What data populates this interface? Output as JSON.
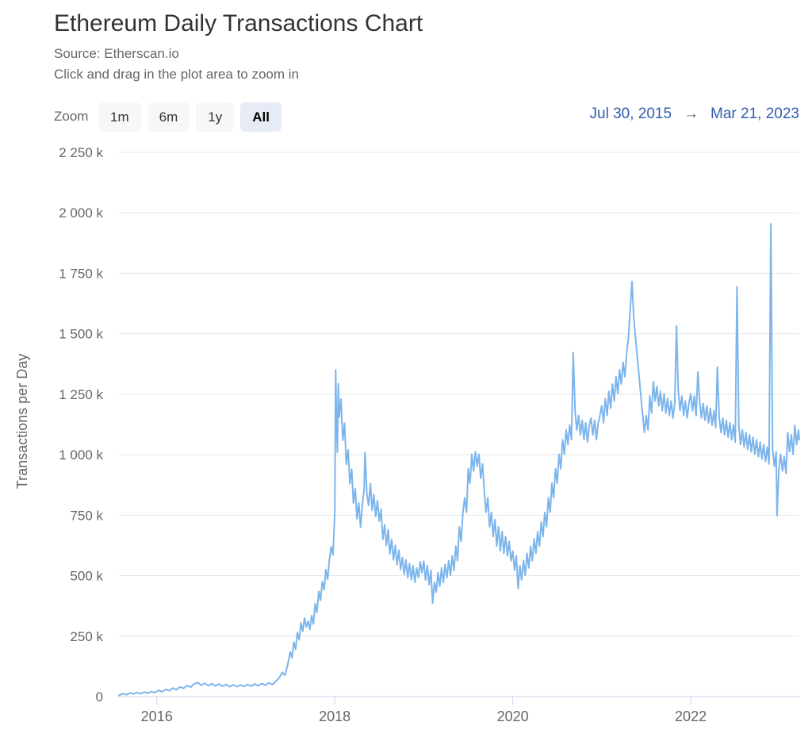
{
  "header": {
    "title": "Ethereum Daily Transactions Chart",
    "source_line": "Source: Etherscan.io",
    "hint_line": "Click and drag in the plot area to zoom in"
  },
  "range_selector": {
    "zoom_label": "Zoom",
    "buttons": [
      {
        "label": "1m",
        "selected": false
      },
      {
        "label": "6m",
        "selected": false
      },
      {
        "label": "1y",
        "selected": false
      },
      {
        "label": "All",
        "selected": true
      }
    ],
    "from_date": "Jul 30, 2015",
    "arrow": "→",
    "to_date": "Mar 21, 2023"
  },
  "colors": {
    "series_line": "#7cb5ec",
    "grid_line": "#e6e6e6",
    "axis_line": "#ccd6eb",
    "axis_text": "#666666",
    "title_text": "#333333",
    "subtitle_text": "#666666",
    "link_blue": "#335cad",
    "button_bg": "#f7f7f7",
    "button_selected_bg": "#e6ebf5"
  },
  "chart_data": {
    "type": "line",
    "title": "Ethereum Daily Transactions Chart",
    "subtitle": "Source: Etherscan.io",
    "xlabel": "",
    "ylabel": "Transactions per Day",
    "y_unit": "thousand transactions (k)",
    "ylim_k": [
      0,
      2250
    ],
    "x_range_years": [
      2015.575,
      2023.22
    ],
    "grid": true,
    "legend": "none",
    "yticks": [
      {
        "value": 0,
        "label": "0"
      },
      {
        "value": 250,
        "label": "250 k"
      },
      {
        "value": 500,
        "label": "500 k"
      },
      {
        "value": 750,
        "label": "750 k"
      },
      {
        "value": 1000,
        "label": "1 000 k"
      },
      {
        "value": 1250,
        "label": "1 250 k"
      },
      {
        "value": 1500,
        "label": "1 500 k"
      },
      {
        "value": 1750,
        "label": "1 750 k"
      },
      {
        "value": 2000,
        "label": "2 000 k"
      },
      {
        "value": 2250,
        "label": "2 250 k"
      }
    ],
    "xticks": [
      {
        "value": 2016,
        "label": "2016"
      },
      {
        "value": 2018,
        "label": "2018"
      },
      {
        "value": 2020,
        "label": "2020"
      },
      {
        "value": 2022,
        "label": "2022"
      }
    ],
    "points_tv_k": [
      [
        2015.575,
        5
      ],
      [
        2015.62,
        12
      ],
      [
        2015.66,
        8
      ],
      [
        2015.7,
        15
      ],
      [
        2015.74,
        11
      ],
      [
        2015.78,
        17
      ],
      [
        2015.82,
        12
      ],
      [
        2015.86,
        19
      ],
      [
        2015.9,
        14
      ],
      [
        2015.94,
        21
      ],
      [
        2015.98,
        16
      ],
      [
        2016.02,
        26
      ],
      [
        2016.06,
        20
      ],
      [
        2016.1,
        30
      ],
      [
        2016.14,
        24
      ],
      [
        2016.18,
        35
      ],
      [
        2016.22,
        29
      ],
      [
        2016.26,
        40
      ],
      [
        2016.3,
        34
      ],
      [
        2016.34,
        46
      ],
      [
        2016.38,
        39
      ],
      [
        2016.42,
        52
      ],
      [
        2016.46,
        58
      ],
      [
        2016.5,
        47
      ],
      [
        2016.54,
        55
      ],
      [
        2016.58,
        45
      ],
      [
        2016.62,
        53
      ],
      [
        2016.66,
        44
      ],
      [
        2016.7,
        52
      ],
      [
        2016.74,
        43
      ],
      [
        2016.78,
        50
      ],
      [
        2016.82,
        41
      ],
      [
        2016.86,
        49
      ],
      [
        2016.9,
        41
      ],
      [
        2016.94,
        48
      ],
      [
        2016.98,
        42
      ],
      [
        2017.02,
        50
      ],
      [
        2017.06,
        43
      ],
      [
        2017.1,
        52
      ],
      [
        2017.14,
        45
      ],
      [
        2017.18,
        54
      ],
      [
        2017.22,
        47
      ],
      [
        2017.26,
        57
      ],
      [
        2017.3,
        50
      ],
      [
        2017.34,
        64
      ],
      [
        2017.38,
        80
      ],
      [
        2017.41,
        100
      ],
      [
        2017.44,
        88
      ],
      [
        2017.47,
        130
      ],
      [
        2017.5,
        185
      ],
      [
        2017.52,
        160
      ],
      [
        2017.54,
        225
      ],
      [
        2017.56,
        195
      ],
      [
        2017.58,
        265
      ],
      [
        2017.6,
        235
      ],
      [
        2017.62,
        305
      ],
      [
        2017.64,
        270
      ],
      [
        2017.66,
        325
      ],
      [
        2017.68,
        288
      ],
      [
        2017.7,
        312
      ],
      [
        2017.72,
        278
      ],
      [
        2017.74,
        335
      ],
      [
        2017.76,
        300
      ],
      [
        2017.78,
        385
      ],
      [
        2017.8,
        348
      ],
      [
        2017.82,
        435
      ],
      [
        2017.84,
        398
      ],
      [
        2017.86,
        475
      ],
      [
        2017.88,
        442
      ],
      [
        2017.9,
        525
      ],
      [
        2017.92,
        485
      ],
      [
        2017.94,
        565
      ],
      [
        2017.96,
        620
      ],
      [
        2017.98,
        585
      ],
      [
        2018.0,
        760
      ],
      [
        2018.01,
        1351
      ],
      [
        2018.02,
        1120
      ],
      [
        2018.03,
        1010
      ],
      [
        2018.04,
        1293
      ],
      [
        2018.05,
        1155
      ],
      [
        2018.07,
        1230
      ],
      [
        2018.09,
        1060
      ],
      [
        2018.11,
        1130
      ],
      [
        2018.13,
        960
      ],
      [
        2018.15,
        1020
      ],
      [
        2018.17,
        880
      ],
      [
        2018.19,
        940
      ],
      [
        2018.21,
        800
      ],
      [
        2018.23,
        860
      ],
      [
        2018.25,
        735
      ],
      [
        2018.27,
        800
      ],
      [
        2018.29,
        700
      ],
      [
        2018.31,
        790
      ],
      [
        2018.33,
        860
      ],
      [
        2018.34,
        1010
      ],
      [
        2018.36,
        840
      ],
      [
        2018.38,
        790
      ],
      [
        2018.4,
        880
      ],
      [
        2018.42,
        770
      ],
      [
        2018.44,
        835
      ],
      [
        2018.46,
        745
      ],
      [
        2018.48,
        810
      ],
      [
        2018.5,
        725
      ],
      [
        2018.52,
        775
      ],
      [
        2018.54,
        650
      ],
      [
        2018.56,
        710
      ],
      [
        2018.58,
        625
      ],
      [
        2018.6,
        690
      ],
      [
        2018.62,
        590
      ],
      [
        2018.64,
        650
      ],
      [
        2018.66,
        565
      ],
      [
        2018.68,
        625
      ],
      [
        2018.7,
        545
      ],
      [
        2018.72,
        605
      ],
      [
        2018.74,
        525
      ],
      [
        2018.76,
        575
      ],
      [
        2018.78,
        505
      ],
      [
        2018.8,
        565
      ],
      [
        2018.82,
        492
      ],
      [
        2018.84,
        550
      ],
      [
        2018.86,
        483
      ],
      [
        2018.88,
        542
      ],
      [
        2018.9,
        472
      ],
      [
        2018.92,
        532
      ],
      [
        2018.94,
        492
      ],
      [
        2018.96,
        558
      ],
      [
        2018.98,
        512
      ],
      [
        2019.0,
        560
      ],
      [
        2019.02,
        482
      ],
      [
        2019.04,
        542
      ],
      [
        2019.06,
        462
      ],
      [
        2019.08,
        522
      ],
      [
        2019.1,
        386
      ],
      [
        2019.12,
        472
      ],
      [
        2019.14,
        432
      ],
      [
        2019.16,
        512
      ],
      [
        2019.18,
        456
      ],
      [
        2019.2,
        532
      ],
      [
        2019.22,
        472
      ],
      [
        2019.24,
        546
      ],
      [
        2019.26,
        492
      ],
      [
        2019.28,
        562
      ],
      [
        2019.3,
        502
      ],
      [
        2019.32,
        582
      ],
      [
        2019.34,
        522
      ],
      [
        2019.36,
        622
      ],
      [
        2019.38,
        562
      ],
      [
        2019.4,
        702
      ],
      [
        2019.42,
        642
      ],
      [
        2019.44,
        762
      ],
      [
        2019.46,
        822
      ],
      [
        2019.48,
        762
      ],
      [
        2019.5,
        942
      ],
      [
        2019.52,
        882
      ],
      [
        2019.54,
        1002
      ],
      [
        2019.56,
        932
      ],
      [
        2019.58,
        1012
      ],
      [
        2019.6,
        952
      ],
      [
        2019.62,
        1002
      ],
      [
        2019.64,
        902
      ],
      [
        2019.66,
        962
      ],
      [
        2019.68,
        852
      ],
      [
        2019.7,
        762
      ],
      [
        2019.72,
        822
      ],
      [
        2019.74,
        702
      ],
      [
        2019.76,
        762
      ],
      [
        2019.78,
        662
      ],
      [
        2019.8,
        732
      ],
      [
        2019.82,
        622
      ],
      [
        2019.84,
        702
      ],
      [
        2019.86,
        602
      ],
      [
        2019.88,
        682
      ],
      [
        2019.9,
        592
      ],
      [
        2019.92,
        662
      ],
      [
        2019.94,
        582
      ],
      [
        2019.96,
        642
      ],
      [
        2019.98,
        562
      ],
      [
        2020.0,
        602
      ],
      [
        2020.02,
        522
      ],
      [
        2020.04,
        582
      ],
      [
        2020.06,
        446
      ],
      [
        2020.08,
        542
      ],
      [
        2020.1,
        482
      ],
      [
        2020.12,
        562
      ],
      [
        2020.14,
        502
      ],
      [
        2020.16,
        592
      ],
      [
        2020.18,
        532
      ],
      [
        2020.2,
        622
      ],
      [
        2020.22,
        562
      ],
      [
        2020.24,
        652
      ],
      [
        2020.26,
        592
      ],
      [
        2020.28,
        682
      ],
      [
        2020.3,
        622
      ],
      [
        2020.32,
        722
      ],
      [
        2020.34,
        662
      ],
      [
        2020.36,
        762
      ],
      [
        2020.38,
        702
      ],
      [
        2020.4,
        822
      ],
      [
        2020.42,
        762
      ],
      [
        2020.44,
        882
      ],
      [
        2020.46,
        822
      ],
      [
        2020.48,
        942
      ],
      [
        2020.5,
        882
      ],
      [
        2020.52,
        1002
      ],
      [
        2020.54,
        942
      ],
      [
        2020.56,
        1062
      ],
      [
        2020.58,
        1002
      ],
      [
        2020.6,
        1102
      ],
      [
        2020.62,
        1042
      ],
      [
        2020.64,
        1122
      ],
      [
        2020.66,
        1062
      ],
      [
        2020.68,
        1422
      ],
      [
        2020.7,
        1182
      ],
      [
        2020.72,
        1102
      ],
      [
        2020.74,
        1162
      ],
      [
        2020.76,
        1082
      ],
      [
        2020.78,
        1142
      ],
      [
        2020.8,
        1062
      ],
      [
        2020.82,
        1132
      ],
      [
        2020.84,
        1052
      ],
      [
        2020.86,
        1122
      ],
      [
        2020.88,
        1152
      ],
      [
        2020.9,
        1082
      ],
      [
        2020.92,
        1142
      ],
      [
        2020.94,
        1062
      ],
      [
        2020.96,
        1132
      ],
      [
        2020.98,
        1162
      ],
      [
        2021.0,
        1202
      ],
      [
        2021.02,
        1132
      ],
      [
        2021.04,
        1232
      ],
      [
        2021.06,
        1162
      ],
      [
        2021.08,
        1262
      ],
      [
        2021.1,
        1192
      ],
      [
        2021.12,
        1292
      ],
      [
        2021.14,
        1222
      ],
      [
        2021.16,
        1322
      ],
      [
        2021.18,
        1252
      ],
      [
        2021.2,
        1352
      ],
      [
        2021.22,
        1292
      ],
      [
        2021.24,
        1382
      ],
      [
        2021.26,
        1322
      ],
      [
        2021.28,
        1422
      ],
      [
        2021.3,
        1482
      ],
      [
        2021.32,
        1602
      ],
      [
        2021.34,
        1716
      ],
      [
        2021.36,
        1562
      ],
      [
        2021.38,
        1482
      ],
      [
        2021.4,
        1402
      ],
      [
        2021.42,
        1322
      ],
      [
        2021.44,
        1242
      ],
      [
        2021.46,
        1162
      ],
      [
        2021.48,
        1092
      ],
      [
        2021.5,
        1162
      ],
      [
        2021.52,
        1102
      ],
      [
        2021.54,
        1242
      ],
      [
        2021.56,
        1172
      ],
      [
        2021.58,
        1302
      ],
      [
        2021.6,
        1222
      ],
      [
        2021.62,
        1282
      ],
      [
        2021.64,
        1202
      ],
      [
        2021.66,
        1262
      ],
      [
        2021.68,
        1182
      ],
      [
        2021.7,
        1252
      ],
      [
        2021.72,
        1172
      ],
      [
        2021.74,
        1232
      ],
      [
        2021.76,
        1162
      ],
      [
        2021.78,
        1222
      ],
      [
        2021.8,
        1152
      ],
      [
        2021.82,
        1212
      ],
      [
        2021.84,
        1532
      ],
      [
        2021.86,
        1262
      ],
      [
        2021.88,
        1182
      ],
      [
        2021.9,
        1242
      ],
      [
        2021.92,
        1162
      ],
      [
        2021.94,
        1222
      ],
      [
        2021.96,
        1152
      ],
      [
        2021.98,
        1212
      ],
      [
        2022.0,
        1252
      ],
      [
        2022.02,
        1182
      ],
      [
        2022.04,
        1242
      ],
      [
        2022.06,
        1162
      ],
      [
        2022.08,
        1342
      ],
      [
        2022.1,
        1222
      ],
      [
        2022.12,
        1152
      ],
      [
        2022.14,
        1212
      ],
      [
        2022.16,
        1142
      ],
      [
        2022.18,
        1202
      ],
      [
        2022.2,
        1132
      ],
      [
        2022.22,
        1192
      ],
      [
        2022.24,
        1122
      ],
      [
        2022.26,
        1182
      ],
      [
        2022.28,
        1112
      ],
      [
        2022.3,
        1362
      ],
      [
        2022.32,
        1152
      ],
      [
        2022.34,
        1092
      ],
      [
        2022.36,
        1152
      ],
      [
        2022.38,
        1082
      ],
      [
        2022.4,
        1142
      ],
      [
        2022.42,
        1072
      ],
      [
        2022.44,
        1132
      ],
      [
        2022.46,
        1062
      ],
      [
        2022.48,
        1122
      ],
      [
        2022.5,
        1052
      ],
      [
        2022.52,
        1695
      ],
      [
        2022.54,
        1122
      ],
      [
        2022.56,
        1042
      ],
      [
        2022.58,
        1102
      ],
      [
        2022.6,
        1032
      ],
      [
        2022.62,
        1092
      ],
      [
        2022.64,
        1022
      ],
      [
        2022.66,
        1082
      ],
      [
        2022.68,
        1012
      ],
      [
        2022.7,
        1072
      ],
      [
        2022.72,
        1002
      ],
      [
        2022.74,
        1062
      ],
      [
        2022.76,
        992
      ],
      [
        2022.78,
        1052
      ],
      [
        2022.8,
        982
      ],
      [
        2022.82,
        1042
      ],
      [
        2022.84,
        972
      ],
      [
        2022.86,
        1032
      ],
      [
        2022.88,
        962
      ],
      [
        2022.9,
        1954
      ],
      [
        2022.92,
        1022
      ],
      [
        2022.94,
        952
      ],
      [
        2022.96,
        1012
      ],
      [
        2022.97,
        748
      ],
      [
        2022.99,
        942
      ],
      [
        2023.01,
        1002
      ],
      [
        2023.03,
        932
      ],
      [
        2023.05,
        992
      ],
      [
        2023.07,
        922
      ],
      [
        2023.09,
        1092
      ],
      [
        2023.11,
        1012
      ],
      [
        2023.13,
        1082
      ],
      [
        2023.15,
        1002
      ],
      [
        2023.17,
        1122
      ],
      [
        2023.19,
        1042
      ],
      [
        2023.21,
        1102
      ],
      [
        2023.22,
        1062
      ]
    ]
  }
}
